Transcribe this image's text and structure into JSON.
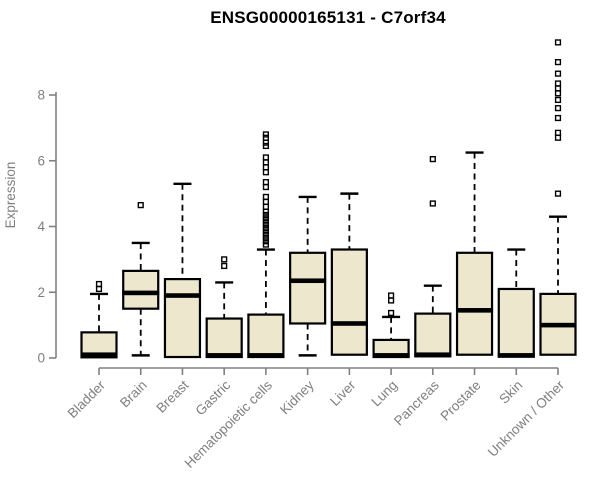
{
  "title": "ENSG00000165131 - C7orf34",
  "chart_data": {
    "type": "boxplot",
    "title": "ENSG00000165131 - C7orf34",
    "xlabel": "",
    "ylabel": "Expression",
    "ylim": [
      0,
      9.8
    ],
    "yticks": [
      0,
      2,
      4,
      6,
      8
    ],
    "grid": false,
    "legend": null,
    "categories": [
      "Bladder",
      "Brain",
      "Breast",
      "Gastric",
      "Hematopoietic cells",
      "Kidney",
      "Liver",
      "Lung",
      "Pancreas",
      "Prostate",
      "Skin",
      "Unknown / Other"
    ],
    "series": [
      {
        "name": "Bladder",
        "low": 0.02,
        "q1": 0.02,
        "median": 0.1,
        "q3": 0.78,
        "high": 1.95,
        "outliers": [
          2.1,
          2.25
        ]
      },
      {
        "name": "Brain",
        "low": 0.08,
        "q1": 1.5,
        "median": 1.98,
        "q3": 2.65,
        "high": 3.5,
        "outliers": [
          4.65
        ]
      },
      {
        "name": "Breast",
        "low": 0.03,
        "q1": 0.03,
        "median": 1.9,
        "q3": 2.4,
        "high": 5.3,
        "outliers": []
      },
      {
        "name": "Gastric",
        "low": 0.03,
        "q1": 0.03,
        "median": 0.08,
        "q3": 1.2,
        "high": 2.3,
        "outliers": [
          2.8,
          3.0
        ]
      },
      {
        "name": "Hematopoietic cells",
        "low": 0.03,
        "q1": 0.03,
        "median": 0.08,
        "q3": 1.32,
        "high": 3.3,
        "outliers": [
          3.45,
          3.55,
          3.65,
          3.75,
          3.85,
          3.95,
          4.05,
          4.15,
          4.25,
          4.35,
          4.45,
          4.6,
          4.75,
          4.9,
          5.2,
          5.35,
          5.65,
          5.8,
          5.95,
          6.1,
          6.45,
          6.55,
          6.7,
          6.8
        ]
      },
      {
        "name": "Kidney",
        "low": 0.08,
        "q1": 1.05,
        "median": 2.35,
        "q3": 3.2,
        "high": 4.9,
        "outliers": []
      },
      {
        "name": "Liver",
        "low": 0.1,
        "q1": 0.1,
        "median": 1.05,
        "q3": 3.3,
        "high": 5.0,
        "outliers": []
      },
      {
        "name": "Lung",
        "low": 0.03,
        "q1": 0.03,
        "median": 0.08,
        "q3": 0.55,
        "high": 1.25,
        "outliers": [
          1.37,
          1.75,
          1.9
        ]
      },
      {
        "name": "Pancreas",
        "low": 0.05,
        "q1": 0.05,
        "median": 0.1,
        "q3": 1.35,
        "high": 2.2,
        "outliers": [
          4.7,
          6.05
        ]
      },
      {
        "name": "Prostate",
        "low": 0.1,
        "q1": 0.1,
        "median": 1.45,
        "q3": 3.2,
        "high": 6.25,
        "outliers": []
      },
      {
        "name": "Skin",
        "low": 0.04,
        "q1": 0.04,
        "median": 0.08,
        "q3": 2.1,
        "high": 3.3,
        "outliers": []
      },
      {
        "name": "Unknown / Other",
        "low": 0.05,
        "q1": 0.1,
        "median": 1.0,
        "q3": 1.95,
        "high": 4.3,
        "outliers": [
          5.0,
          6.7,
          6.85,
          7.3,
          7.6,
          7.85,
          8.05,
          8.2,
          8.35,
          8.65,
          9.0,
          9.6
        ]
      }
    ]
  },
  "colors": {
    "background": "#ffffff",
    "box_fill": "#ede8cd",
    "box_stroke": "#000000",
    "median": "#000000",
    "whisker": "#000000",
    "outlier": "#000000",
    "axis": "#808080",
    "tick_label": "#7f7f7f",
    "title": "#000000"
  }
}
